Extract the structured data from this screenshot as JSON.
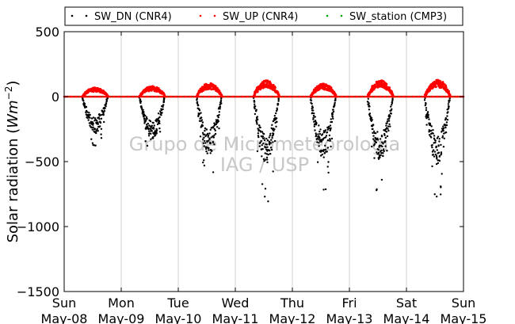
{
  "chart_data": {
    "type": "scatter",
    "title": "",
    "xlabel": "",
    "ylabel": "Solar radiation ($Wm{-2}$)",
    "ylabel_parts": {
      "prefix": "Solar radiation (",
      "math": "Wm",
      "sup": "−2",
      "suffix": ")"
    },
    "ylim": [
      -1500,
      500
    ],
    "yticks": [
      500,
      0,
      -500,
      -1000,
      -1500
    ],
    "ytick_labels": [
      "500",
      "0",
      "−500",
      "−1000",
      "−1500"
    ],
    "xlim": [
      "2015-05-08",
      "2015-05-15"
    ],
    "xticks": [
      {
        "weekday": "Sun",
        "date": "May-08"
      },
      {
        "weekday": "Mon",
        "date": "May-09"
      },
      {
        "weekday": "Tue",
        "date": "May-10"
      },
      {
        "weekday": "Wed",
        "date": "May-11"
      },
      {
        "weekday": "Thu",
        "date": "May-12"
      },
      {
        "weekday": "Fri",
        "date": "May-13"
      },
      {
        "weekday": "Sat",
        "date": "May-14"
      },
      {
        "weekday": "Sun",
        "date": "May-15"
      }
    ],
    "grid": "vertical",
    "legend_position": "top",
    "watermark": [
      "Grupo de Micrometeorologia",
      "IAG / USP"
    ],
    "series": [
      {
        "name": "SW_DN (CNR4)",
        "color": "#000000",
        "daily_min": [
          -460,
          -550,
          -730,
          -840,
          -770,
          -800,
          -850
        ]
      },
      {
        "name": "SW_UP (CNR4)",
        "color": "#ff0000",
        "daily_max": [
          70,
          80,
          105,
          125,
          100,
          125,
          130
        ]
      },
      {
        "name": "SW_station (CMP3)",
        "color": "#00aa00",
        "daily_max": [
          0,
          0,
          0,
          0,
          0,
          0,
          0
        ]
      }
    ]
  }
}
